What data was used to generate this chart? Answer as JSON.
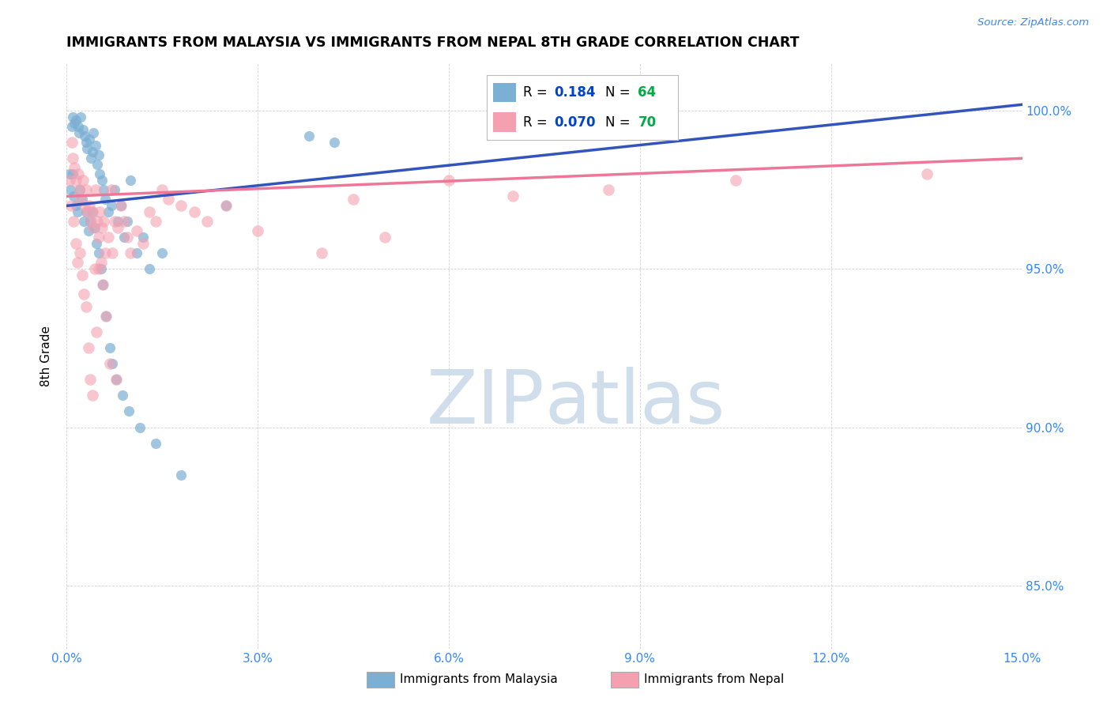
{
  "title": "IMMIGRANTS FROM MALAYSIA VS IMMIGRANTS FROM NEPAL 8TH GRADE CORRELATION CHART",
  "source": "Source: ZipAtlas.com",
  "ylabel": "8th Grade",
  "malaysia_label": "Immigrants from Malaysia",
  "nepal_label": "Immigrants from Nepal",
  "malaysia_color": "#7BAFD4",
  "nepal_color": "#F4A0B0",
  "malaysia_line_color": "#3355BB",
  "nepal_line_color": "#EE7799",
  "malaysia_R": 0.184,
  "malaysia_N": 64,
  "nepal_R": 0.07,
  "nepal_N": 70,
  "legend_R_color": "#0044CC",
  "legend_N_color": "#00AA44",
  "x_min": 0.0,
  "x_max": 15.0,
  "y_min": 83.0,
  "y_max": 101.5,
  "y_ticks": [
    85.0,
    90.0,
    95.0,
    100.0
  ],
  "x_ticks": [
    0,
    3,
    6,
    9,
    12,
    15
  ],
  "watermark_zip": "ZIP",
  "watermark_atlas": "atlas",
  "malaysia_x": [
    0.05,
    0.08,
    0.1,
    0.12,
    0.15,
    0.18,
    0.2,
    0.22,
    0.25,
    0.28,
    0.3,
    0.32,
    0.35,
    0.38,
    0.4,
    0.42,
    0.45,
    0.48,
    0.5,
    0.52,
    0.55,
    0.58,
    0.6,
    0.65,
    0.7,
    0.75,
    0.8,
    0.85,
    0.9,
    0.95,
    1.0,
    1.1,
    1.2,
    1.3,
    1.5,
    2.5,
    0.06,
    0.09,
    0.11,
    0.14,
    0.17,
    0.21,
    0.24,
    0.27,
    0.31,
    0.34,
    0.37,
    0.41,
    0.44,
    0.47,
    0.51,
    0.54,
    0.57,
    0.62,
    0.68,
    0.72,
    0.78,
    0.88,
    0.98,
    1.15,
    1.4,
    1.8,
    3.8,
    4.2
  ],
  "malaysia_y": [
    98.0,
    99.5,
    99.8,
    99.6,
    99.7,
    99.5,
    99.3,
    99.8,
    99.4,
    99.2,
    99.0,
    98.8,
    99.1,
    98.5,
    98.7,
    99.3,
    98.9,
    98.3,
    98.6,
    98.0,
    97.8,
    97.5,
    97.2,
    96.8,
    97.0,
    97.5,
    96.5,
    97.0,
    96.0,
    96.5,
    97.8,
    95.5,
    96.0,
    95.0,
    95.5,
    97.0,
    97.5,
    98.0,
    97.3,
    97.0,
    96.8,
    97.5,
    97.2,
    96.5,
    96.8,
    96.2,
    96.5,
    96.8,
    96.3,
    95.8,
    95.5,
    95.0,
    94.5,
    93.5,
    92.5,
    92.0,
    91.5,
    91.0,
    90.5,
    90.0,
    89.5,
    88.5,
    99.2,
    99.0
  ],
  "nepal_x": [
    0.05,
    0.08,
    0.1,
    0.12,
    0.15,
    0.18,
    0.2,
    0.22,
    0.25,
    0.28,
    0.3,
    0.32,
    0.35,
    0.38,
    0.4,
    0.42,
    0.45,
    0.48,
    0.5,
    0.52,
    0.55,
    0.58,
    0.6,
    0.65,
    0.7,
    0.75,
    0.8,
    0.85,
    0.9,
    0.95,
    1.0,
    1.1,
    1.2,
    1.4,
    1.6,
    1.8,
    2.0,
    2.2,
    2.5,
    3.0,
    4.0,
    4.5,
    5.0,
    6.0,
    7.0,
    1.3,
    1.5,
    0.07,
    0.11,
    0.14,
    0.17,
    0.21,
    0.24,
    0.27,
    0.31,
    0.34,
    0.37,
    0.41,
    0.44,
    0.47,
    0.51,
    0.54,
    0.57,
    0.62,
    0.68,
    0.72,
    0.78,
    8.5,
    10.5,
    13.5
  ],
  "nepal_y": [
    97.8,
    99.0,
    98.5,
    98.2,
    97.8,
    98.0,
    97.5,
    97.2,
    97.8,
    97.0,
    97.5,
    96.8,
    97.0,
    96.5,
    96.8,
    96.3,
    97.5,
    96.5,
    96.0,
    96.8,
    96.3,
    96.5,
    95.5,
    96.0,
    97.5,
    96.5,
    96.3,
    97.0,
    96.5,
    96.0,
    95.5,
    96.2,
    95.8,
    96.5,
    97.2,
    97.0,
    96.8,
    96.5,
    97.0,
    96.2,
    95.5,
    97.2,
    96.0,
    97.8,
    97.3,
    96.8,
    97.5,
    97.0,
    96.5,
    95.8,
    95.2,
    95.5,
    94.8,
    94.2,
    93.8,
    92.5,
    91.5,
    91.0,
    95.0,
    93.0,
    95.0,
    95.2,
    94.5,
    93.5,
    92.0,
    95.5,
    91.5,
    97.5,
    97.8,
    98.0
  ]
}
